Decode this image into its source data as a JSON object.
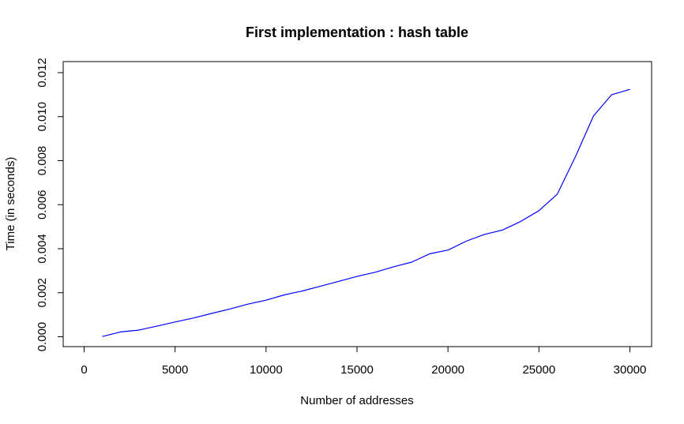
{
  "chart_data": {
    "type": "line",
    "title": "First implementation : hash table",
    "xlabel": "Number of addresses",
    "ylabel": "Time (in seconds)",
    "xlim": [
      0,
      30000
    ],
    "ylim": [
      0,
      0.012
    ],
    "x_ticks": [
      0,
      5000,
      10000,
      15000,
      20000,
      25000,
      30000
    ],
    "y_ticks": [
      0.0,
      0.002,
      0.004,
      0.006,
      0.008,
      0.01,
      0.012
    ],
    "x_tick_labels": [
      "0",
      "5000",
      "10000",
      "15000",
      "20000",
      "25000",
      "30000"
    ],
    "y_tick_labels": [
      "0.000",
      "0.002",
      "0.004",
      "0.006",
      "0.008",
      "0.010",
      "0.012"
    ],
    "grid": false,
    "series": [
      {
        "color": "#0000ff",
        "x": [
          1000,
          2000,
          3000,
          4000,
          5000,
          6000,
          7000,
          8000,
          9000,
          10000,
          11000,
          12000,
          13000,
          14000,
          15000,
          16000,
          17000,
          18000,
          19000,
          20000,
          21000,
          22000,
          23000,
          24000,
          25000,
          26000,
          27000,
          28000,
          29000,
          30000
        ],
        "y": [
          1e-05,
          0.00022,
          0.0003,
          0.00048,
          0.00067,
          0.00085,
          0.00106,
          0.00126,
          0.00148,
          0.00166,
          0.0019,
          0.00208,
          0.0023,
          0.00252,
          0.00274,
          0.00293,
          0.00318,
          0.00339,
          0.00377,
          0.00394,
          0.00434,
          0.00465,
          0.00485,
          0.00524,
          0.00573,
          0.00647,
          0.00817,
          0.01003,
          0.011,
          0.01124
        ]
      }
    ]
  }
}
